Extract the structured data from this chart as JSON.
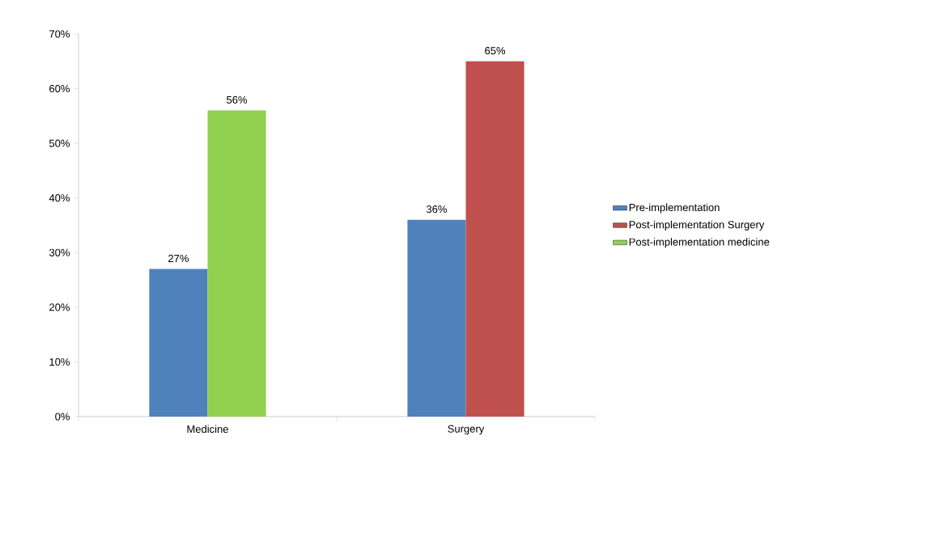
{
  "chart_data": {
    "type": "bar",
    "categories": [
      "Medicine",
      "Surgery"
    ],
    "series": [
      {
        "name": "Pre-implementation",
        "color": "#4f81bd",
        "values": [
          27,
          36
        ],
        "value_labels": [
          "27%",
          "36%"
        ]
      },
      {
        "name": "Post-implementation Surgery",
        "color": "#c0504d",
        "values": [
          null,
          65
        ],
        "value_labels": [
          null,
          "65%"
        ]
      },
      {
        "name": "Post-implementation medicine",
        "color": "#92d050",
        "values": [
          56,
          null
        ],
        "value_labels": [
          "56%",
          null
        ]
      }
    ],
    "ylim": [
      0,
      70
    ],
    "yticks": [
      {
        "value": 0,
        "label": "0%"
      },
      {
        "value": 10,
        "label": "10%"
      },
      {
        "value": 20,
        "label": "20%"
      },
      {
        "value": 30,
        "label": "30%"
      },
      {
        "value": 40,
        "label": "40%"
      },
      {
        "value": 50,
        "label": "50%"
      },
      {
        "value": 60,
        "label": "60%"
      },
      {
        "value": 70,
        "label": "70%"
      }
    ],
    "legend": "right"
  }
}
